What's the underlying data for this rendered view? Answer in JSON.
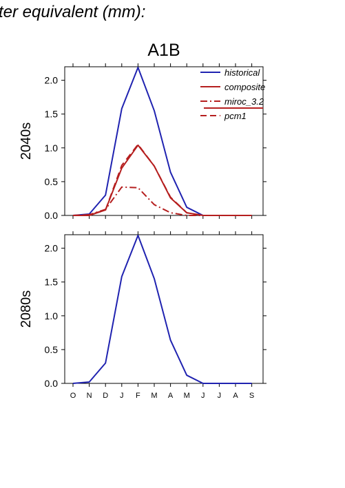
{
  "header_text": "ter equivalent (mm):",
  "chart_data": {
    "type": "line",
    "title": "A1B",
    "categories": [
      "O",
      "N",
      "D",
      "J",
      "F",
      "M",
      "A",
      "M",
      "J",
      "J",
      "A",
      "S"
    ],
    "ylim": [
      0,
      2.2
    ],
    "yticks": [
      "0.0",
      "0.5",
      "1.0",
      "1.5",
      "2.0"
    ],
    "ytick_values": [
      0,
      0.5,
      1.0,
      1.5,
      2.0
    ],
    "grid": false,
    "legend_position": "top-right",
    "colors": {
      "historical": "#1f22b0",
      "future": "#b51e1e"
    },
    "panels": [
      {
        "ylabel": "2040s",
        "legend": [
          "historical",
          "composite",
          "miroc_3.2",
          "pcm1"
        ],
        "series": [
          {
            "name": "historical",
            "style": "solid",
            "values": [
              0.0,
              0.02,
              0.3,
              1.58,
              2.19,
              1.55,
              0.64,
              0.12,
              0.0,
              0.0,
              0.0,
              0.0
            ]
          },
          {
            "name": "composite",
            "style": "solid",
            "values": [
              0.0,
              0.0,
              0.08,
              0.7,
              1.04,
              0.73,
              0.26,
              0.04,
              0.0,
              0.0,
              0.0,
              0.0
            ]
          },
          {
            "name": "miroc_3.2",
            "style": "dashdot",
            "values": [
              0.0,
              0.01,
              0.09,
              0.42,
              0.41,
              0.16,
              0.04,
              0.0,
              0.0,
              0.0,
              0.0,
              0.0
            ]
          },
          {
            "name": "pcm1",
            "style": "dashed",
            "values": [
              0.0,
              0.01,
              0.08,
              0.74,
              1.05,
              0.73,
              0.27,
              0.04,
              0.0,
              0.0,
              0.0,
              0.0
            ]
          }
        ]
      },
      {
        "ylabel": "2080s",
        "legend": [],
        "series": [
          {
            "name": "historical",
            "style": "solid",
            "values": [
              0.0,
              0.02,
              0.3,
              1.58,
              2.19,
              1.55,
              0.64,
              0.12,
              0.0,
              0.0,
              0.0,
              0.0
            ]
          }
        ]
      }
    ]
  }
}
